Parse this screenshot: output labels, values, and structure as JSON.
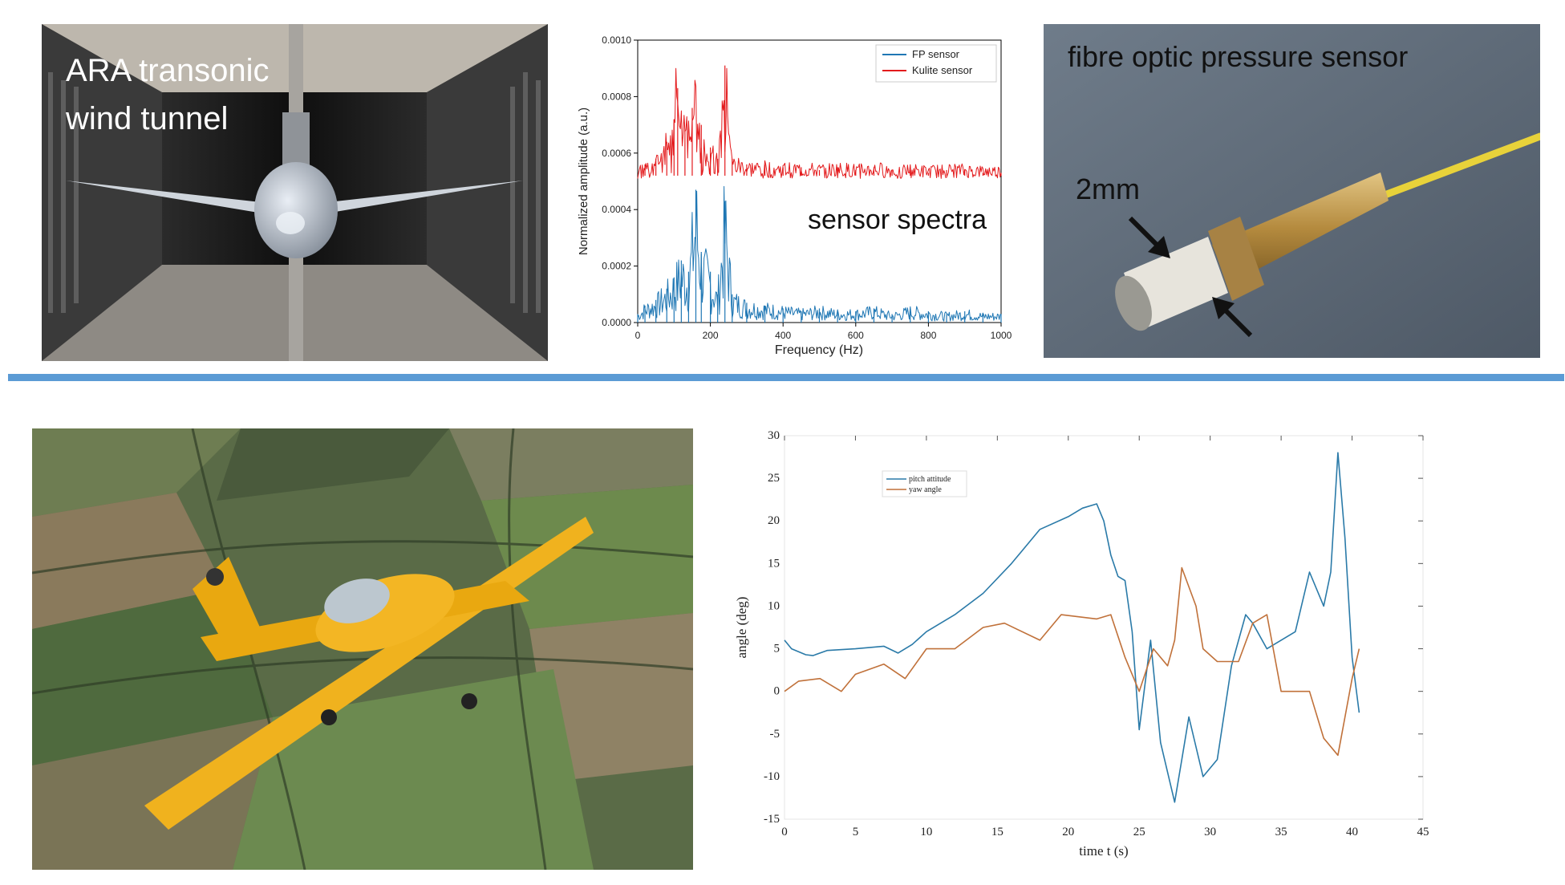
{
  "wind_tunnel_photo": {
    "label_line1": "ARA transonic",
    "label_line2": "wind tunnel"
  },
  "fp_sensor_photo": {
    "label": "fibre optic pressure sensor",
    "size_label": "2mm"
  },
  "divider": {
    "color": "#5b9bd5"
  },
  "chart_data": [
    {
      "type": "line",
      "annotation": "sensor spectra",
      "xlabel": "Frequency (Hz)",
      "ylabel": "Normalized amplitude (a.u.)",
      "xlim": [
        0,
        1000
      ],
      "ylim": [
        0,
        0.001
      ],
      "xticks": [
        "0",
        "200",
        "400",
        "600",
        "800",
        "1000"
      ],
      "yticks": [
        "0.0000",
        "0.0002",
        "0.0004",
        "0.0006",
        "0.0008",
        "0.0010"
      ],
      "legend_position": "top-right",
      "series": [
        {
          "name": "FP sensor",
          "color": "#1f77b4",
          "x": [
            0,
            20,
            50,
            80,
            100,
            120,
            140,
            160,
            175,
            200,
            220,
            240,
            260,
            300,
            350,
            400,
            450,
            500,
            550,
            600,
            650,
            700,
            750,
            800,
            850,
            900,
            950,
            1000
          ],
          "y": [
            3e-05,
            6e-05,
            8e-05,
            0.00012,
            0.00016,
            0.00022,
            0.00018,
            0.00047,
            0.00025,
            0.00018,
            0.0001,
            0.00043,
            0.0001,
            7e-05,
            6e-05,
            5e-05,
            4e-05,
            5e-05,
            4e-05,
            4e-05,
            5e-05,
            3e-05,
            5e-05,
            4e-05,
            3e-05,
            4e-05,
            3e-05,
            3e-05
          ]
        },
        {
          "name": "Kulite sensor",
          "color": "#e31a1c",
          "x": [
            0,
            20,
            50,
            80,
            100,
            110,
            130,
            150,
            175,
            200,
            220,
            240,
            260,
            300,
            350,
            400,
            450,
            500,
            550,
            600,
            650,
            700,
            750,
            800,
            850,
            900,
            950,
            1000
          ],
          "y": [
            0.00052,
            0.00056,
            0.00058,
            0.00064,
            0.00072,
            0.00083,
            0.00068,
            0.00076,
            0.0007,
            0.00062,
            0.00058,
            0.00091,
            0.00058,
            0.00056,
            0.00056,
            0.00055,
            0.00055,
            0.00054,
            0.00055,
            0.00054,
            0.00055,
            0.00054,
            0.00054,
            0.00053,
            0.00054,
            0.00054,
            0.00053,
            0.00053
          ]
        }
      ]
    },
    {
      "type": "line",
      "xlabel": "time t (s)",
      "ylabel": "angle (deg)",
      "xlim": [
        0,
        45
      ],
      "ylim": [
        -15,
        30
      ],
      "xticks": [
        "0",
        "5",
        "10",
        "15",
        "20",
        "25",
        "30",
        "35",
        "40",
        "45"
      ],
      "yticks": [
        "-15",
        "-10",
        "-5",
        "0",
        "5",
        "10",
        "15",
        "20",
        "25",
        "30"
      ],
      "legend_position": "top-left",
      "series": [
        {
          "name": "pitch attitude",
          "color": "#2a7aa8",
          "x": [
            0,
            0.5,
            1.5,
            2,
            3,
            5,
            7,
            8,
            9,
            10,
            12,
            14,
            16,
            18,
            20,
            21,
            22,
            22.5,
            23,
            23.5,
            24,
            24.5,
            25,
            25.8,
            26.5,
            27.5,
            28,
            28.5,
            29.5,
            30.5,
            31.5,
            32.5,
            33,
            34,
            35,
            36,
            37,
            38,
            38.5,
            39,
            39.5,
            40,
            40.5
          ],
          "y": [
            6,
            5,
            4.3,
            4.2,
            4.8,
            5,
            5.3,
            4.5,
            5.5,
            7,
            9,
            11.5,
            15,
            19,
            20.5,
            21.5,
            22,
            20,
            16,
            13.5,
            13,
            7,
            -4.5,
            6,
            -6,
            -13,
            -8,
            -3,
            -10,
            -8,
            3,
            9,
            8,
            5,
            6,
            7,
            14,
            10,
            14,
            28,
            18,
            4,
            -2.5
          ]
        },
        {
          "name": "yaw angle",
          "color": "#c0713a",
          "x": [
            0,
            1,
            2.5,
            4,
            5,
            7,
            8.5,
            10,
            12,
            14,
            15.5,
            18,
            19.5,
            22,
            23,
            24,
            25,
            26,
            27,
            27.5,
            28,
            29,
            29.5,
            30.5,
            32,
            33,
            34,
            35,
            37,
            38,
            39,
            40,
            40.5
          ],
          "y": [
            0,
            1.2,
            1.5,
            0,
            2,
            3.2,
            1.5,
            5,
            5,
            7.5,
            8,
            6,
            9,
            8.5,
            9,
            4,
            0,
            5,
            3,
            6,
            14.5,
            10,
            5,
            3.5,
            3.5,
            8,
            9,
            0,
            0,
            -5.5,
            -7.5,
            1.5,
            5
          ]
        }
      ]
    }
  ]
}
